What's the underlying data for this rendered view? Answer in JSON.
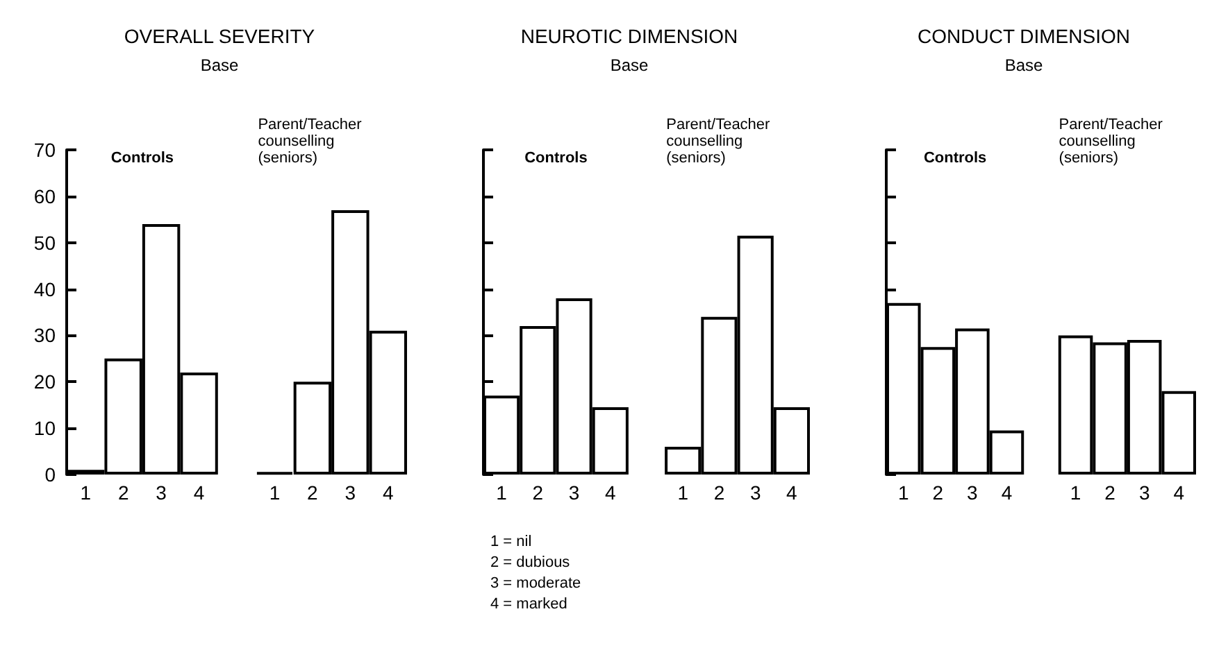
{
  "chart_data": [
    {
      "type": "bar",
      "title": "OVERALL SEVERITY",
      "subtitle": "Base",
      "categories": [
        "1",
        "2",
        "3",
        "4",
        null,
        "1",
        "2",
        "3",
        "4"
      ],
      "values": [
        1,
        25,
        54,
        22,
        null,
        0.5,
        20,
        57,
        31
      ],
      "colors": [
        "#000000",
        "#ffffff",
        "#ffffff",
        "#ffffff",
        null,
        "#000000",
        "#ffffff",
        "#ffffff",
        "#ffffff"
      ],
      "ylim": [
        0,
        70
      ],
      "yticks": [
        0,
        10,
        20,
        30,
        40,
        50,
        60,
        70
      ],
      "grid": false,
      "annotations": [
        "Controls",
        "Parent/Teacher\ncounselling\n(seniors)"
      ]
    },
    {
      "type": "bar",
      "title": "NEUROTIC DIMENSION",
      "subtitle": "Base",
      "categories": [
        "1",
        "2",
        "3",
        "4",
        null,
        "1",
        "2",
        "3",
        "4"
      ],
      "values": [
        17,
        32,
        38,
        14.5,
        null,
        6,
        34,
        51.5,
        14.5
      ],
      "color": "#ffffff",
      "ylim": [
        0,
        70
      ],
      "yticks": [
        {
          "value": 0,
          "label": null
        },
        {
          "value": 10,
          "label": null
        },
        {
          "value": 20,
          "label": null
        },
        {
          "value": 30,
          "label": null
        },
        {
          "value": 40,
          "label": null
        },
        {
          "value": 50,
          "label": null
        },
        {
          "value": 60,
          "label": null
        },
        {
          "value": 70,
          "label": null
        }
      ],
      "tick_labels": "x",
      "grid": false,
      "annotations": [
        "Controls",
        "Parent/Teacher\ncounselling\n(seniors)",
        "1 = nil\n2 = dubious\n3 = moderate\n4 = marked"
      ]
    },
    {
      "type": "bar",
      "title": "CONDUCT DIMENSION",
      "subtitle": "Base",
      "categories": [
        "1",
        "2",
        "3",
        "4",
        null,
        "1",
        "2",
        "3",
        "4"
      ],
      "values": [
        37,
        27.5,
        31.5,
        9.5,
        null,
        30,
        28.5,
        29,
        18
      ],
      "color": "#ffffff",
      "ylim": [
        0,
        70
      ],
      "yticks": [
        {
          "value": 0,
          "label": null
        },
        {
          "value": 10,
          "label": null
        },
        {
          "value": 20,
          "label": null
        },
        {
          "value": 30,
          "label": null
        },
        {
          "value": 40,
          "label": null
        },
        {
          "value": 50,
          "label": null
        },
        {
          "value": 60,
          "label": null
        },
        {
          "value": 70,
          "label": null
        }
      ],
      "tick_labels": "x",
      "grid": false,
      "annotations": [
        "Controls",
        "Parent/Teacher\ncounselling\n(seniors)"
      ]
    }
  ]
}
